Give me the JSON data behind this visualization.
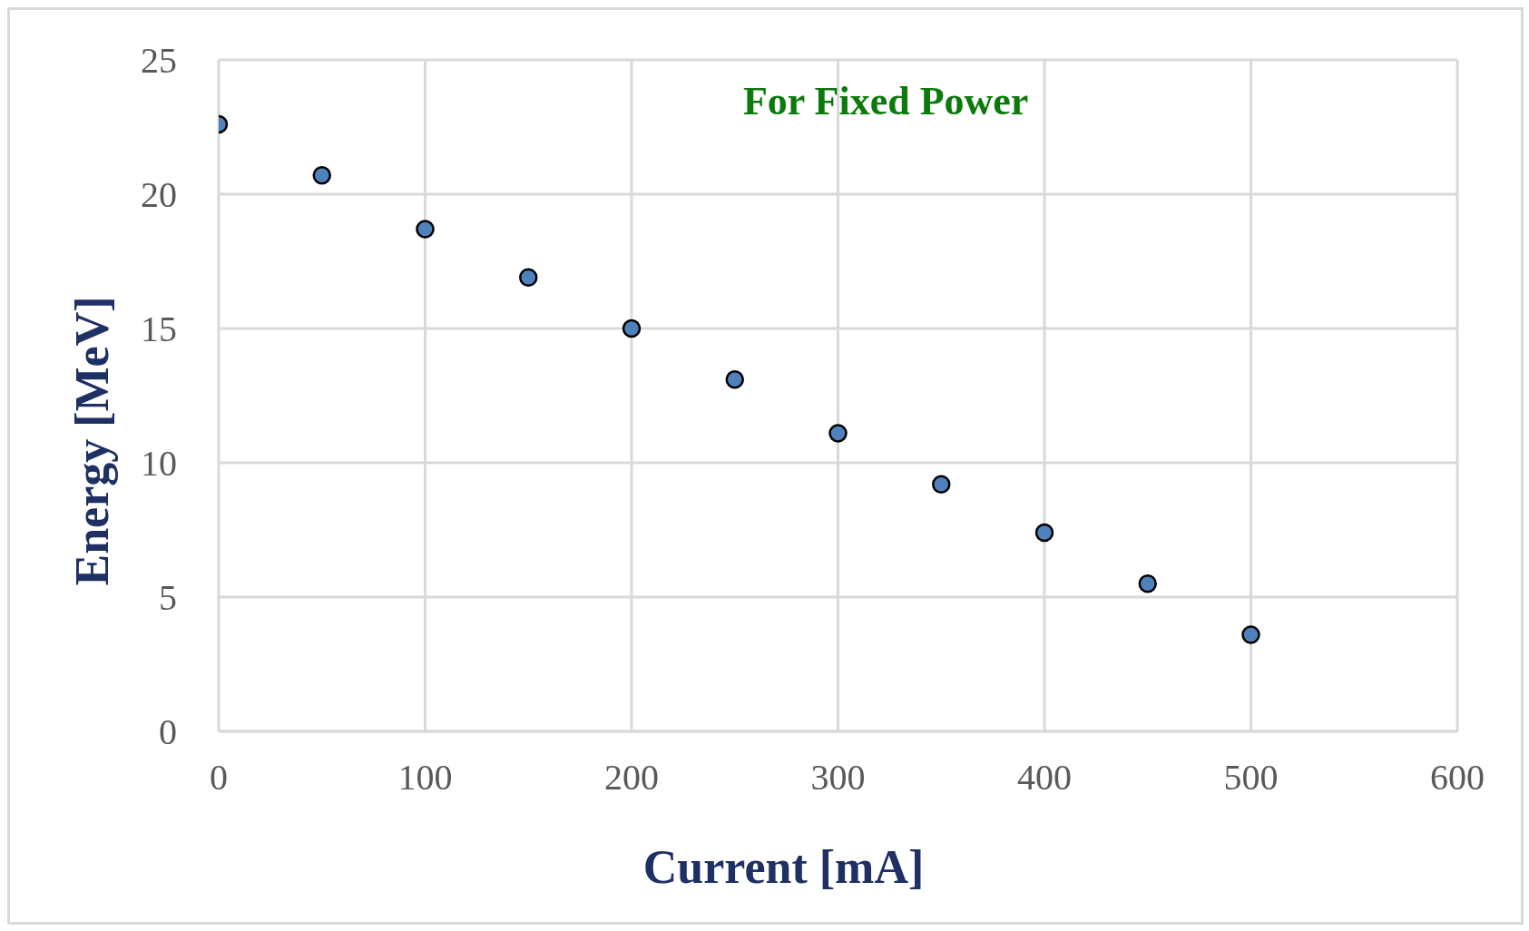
{
  "chart_data": {
    "type": "scatter",
    "xlabel": "Current [mA]",
    "ylabel": "Energy [MeV]",
    "annotations": [
      "For Fixed Power"
    ],
    "x": [
      0,
      50,
      100,
      150,
      200,
      250,
      300,
      350,
      400,
      450,
      500
    ],
    "series": [
      {
        "color": "#4f81bd",
        "values": [
          22.6,
          20.7,
          18.7,
          16.9,
          15.0,
          13.1,
          11.1,
          9.2,
          7.4,
          5.5,
          3.6
        ]
      }
    ],
    "xlim": [
      0,
      600
    ],
    "xticks": [
      0,
      100,
      200,
      300,
      400,
      500,
      600
    ],
    "ylim": [
      0,
      25
    ],
    "yticks": [
      0,
      5,
      10,
      15,
      20,
      25
    ],
    "grid": true,
    "marker": "circle"
  }
}
